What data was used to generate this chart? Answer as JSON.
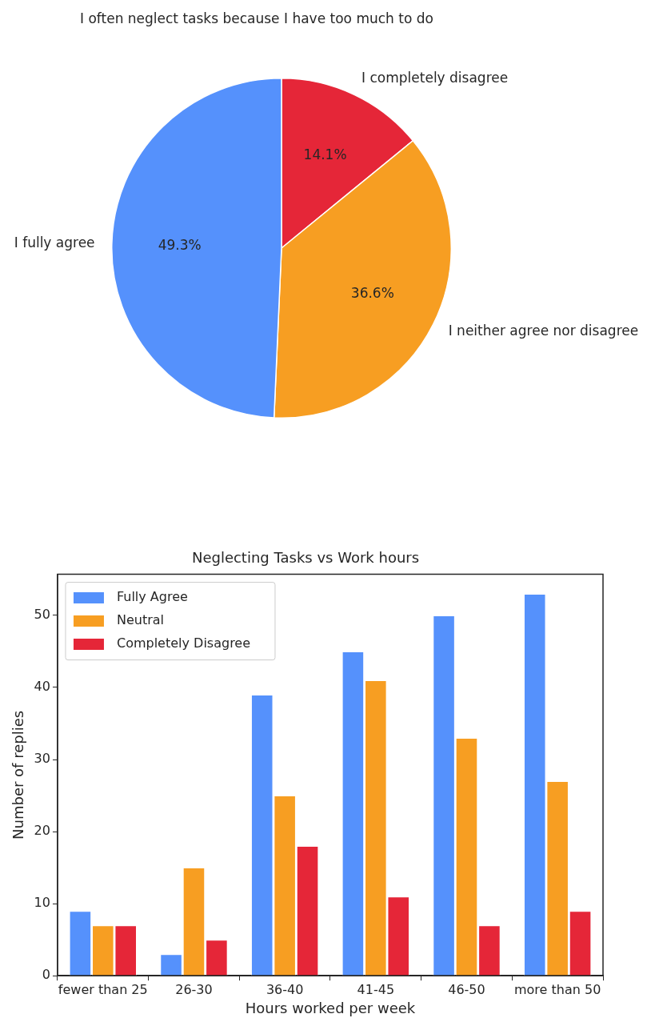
{
  "chart_data": [
    {
      "type": "pie",
      "title": "I often neglect tasks because I have too much to do",
      "categories": [
        "I completely disagree",
        "I neither agree nor disagree",
        "I fully agree"
      ],
      "values": [
        14.1,
        36.6,
        49.3
      ],
      "colors": [
        "#e52638",
        "#f79e22",
        "#5591fc"
      ],
      "value_labels": [
        "14.1%",
        "36.6%",
        "49.3%"
      ]
    },
    {
      "type": "bar",
      "title": "Neglecting Tasks vs Work hours",
      "xlabel": "Hours worked per week",
      "ylabel": "Number of replies",
      "categories": [
        "fewer than 25",
        "26-30",
        "36-40",
        "41-45",
        "46-50",
        "more than 50"
      ],
      "series": [
        {
          "name": "Fully Agree",
          "color": "#5591fc",
          "values": [
            9,
            3,
            39,
            45,
            50,
            53
          ]
        },
        {
          "name": "Neutral",
          "color": "#f79e22",
          "values": [
            7,
            15,
            25,
            41,
            33,
            27
          ]
        },
        {
          "name": "Completely Disagree",
          "color": "#e52638",
          "values": [
            7,
            5,
            18,
            11,
            7,
            9
          ]
        }
      ],
      "ylim": [
        0,
        55.7
      ],
      "yticks": [
        0,
        10,
        20,
        30,
        40,
        50
      ],
      "grid": false,
      "legend": "top left"
    }
  ]
}
